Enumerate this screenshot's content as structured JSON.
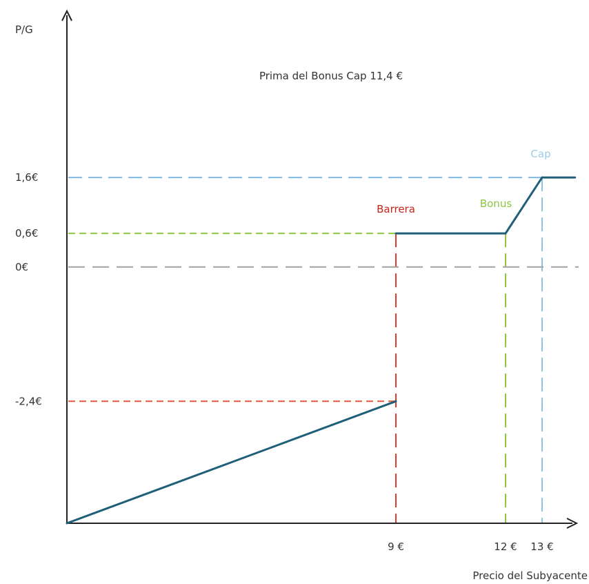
{
  "chart_data": {
    "type": "line",
    "title": "Prima del Bonus Cap 11,4 €",
    "ylabel": "P/G",
    "xlabel": "Precio del Subyacente",
    "series": [
      {
        "x": [
          0,
          9,
          9,
          12,
          13,
          13.9
        ],
        "y": [
          -4.58,
          -2.4,
          0.6,
          0.6,
          1.6,
          1.6
        ],
        "color": "#1f5f78"
      }
    ],
    "xticks": [
      {
        "value": 9,
        "label": "9 €"
      },
      {
        "value": 12,
        "label": "12 €"
      },
      {
        "value": 13,
        "label": "13 €"
      }
    ],
    "yticks": [
      {
        "value": 1.6,
        "label": "1,6€"
      },
      {
        "value": 0.6,
        "label": "0,6€"
      },
      {
        "value": 0,
        "label": "0€"
      },
      {
        "value": -2.4,
        "label": "-2,4€"
      }
    ],
    "reference_lines": [
      {
        "name": "Cap",
        "orientation": "horizontal",
        "value": 1.6,
        "color": "#7fb8e0"
      },
      {
        "name": "Cap",
        "orientation": "vertical",
        "value": 13,
        "color": "#8ec5dc"
      },
      {
        "name": "Bonus",
        "orientation": "horizontal",
        "value": 0.6,
        "color": "#8cc63f"
      },
      {
        "name": "Bonus",
        "orientation": "vertical",
        "value": 12,
        "color": "#8cc63f"
      },
      {
        "name": "Barrera",
        "orientation": "horizontal",
        "value": -2.4,
        "color": "#e25a3a"
      },
      {
        "name": "Barrera",
        "orientation": "vertical",
        "value": 9,
        "color": "#e03a2c"
      },
      {
        "name": "zero",
        "orientation": "horizontal",
        "value": 0,
        "color": "#a0a0a0"
      }
    ],
    "annotations": [
      {
        "text": "Cap",
        "x": 13,
        "y": 1.6,
        "color": "#9ccbe8"
      },
      {
        "text": "Bonus",
        "x": 12,
        "y": 0.6,
        "color": "#8cc63f"
      },
      {
        "text": "Barrera",
        "x": 9,
        "y": 0.6,
        "color": "#c9231c"
      }
    ],
    "xlim": [
      0,
      14
    ],
    "ylim": [
      -4.58,
      4.5
    ],
    "grid": false,
    "legend": "none"
  }
}
